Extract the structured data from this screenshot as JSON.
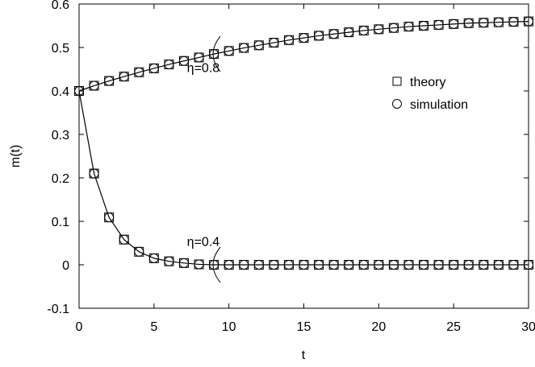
{
  "chart_data": {
    "type": "line",
    "xlabel": "t",
    "ylabel": "m(t)",
    "xlim": [
      0,
      30
    ],
    "ylim": [
      -0.1,
      0.6
    ],
    "xticks": [
      0,
      5,
      10,
      15,
      20,
      25,
      30
    ],
    "yticks": [
      -0.1,
      0,
      0.1,
      0.2,
      0.3,
      0.4,
      0.5,
      0.6
    ],
    "xtick_labels": [
      "0",
      "5",
      "10",
      "15",
      "20",
      "25",
      "30"
    ],
    "ytick_labels": [
      "-0.1",
      "0",
      "0.1",
      "0.2",
      "0.3",
      "0.4",
      "0.5",
      "0.6"
    ],
    "grid": false,
    "legend_position": "right",
    "legend": [
      {
        "label": "theory",
        "marker": "square"
      },
      {
        "label": "simulation",
        "marker": "circle"
      }
    ],
    "annotations": [
      {
        "text": "η=0.8",
        "x": 7.2,
        "y": 0.455
      },
      {
        "text": "η=0.4",
        "x": 7.2,
        "y": 0.055
      }
    ],
    "x": [
      0,
      1,
      2,
      3,
      4,
      5,
      6,
      7,
      8,
      9,
      10,
      11,
      12,
      13,
      14,
      15,
      16,
      17,
      18,
      19,
      20,
      21,
      22,
      23,
      24,
      25,
      26,
      27,
      28,
      29,
      30
    ],
    "series": [
      {
        "values": [
          0.4,
          0.412,
          0.423,
          0.433,
          0.443,
          0.452,
          0.461,
          0.469,
          0.477,
          0.485,
          0.492,
          0.499,
          0.505,
          0.511,
          0.517,
          0.522,
          0.527,
          0.531,
          0.535,
          0.539,
          0.542,
          0.545,
          0.548,
          0.55,
          0.552,
          0.554,
          0.556,
          0.557,
          0.558,
          0.559,
          0.56
        ]
      },
      {
        "values": [
          0.4,
          0.21,
          0.109,
          0.058,
          0.03,
          0.015,
          0.008,
          0.004,
          0.001,
          0,
          0,
          0,
          0,
          0,
          0,
          0,
          0,
          0,
          0,
          0,
          0,
          0,
          0,
          0,
          0,
          0,
          0,
          0,
          0,
          0,
          0
        ]
      }
    ]
  }
}
